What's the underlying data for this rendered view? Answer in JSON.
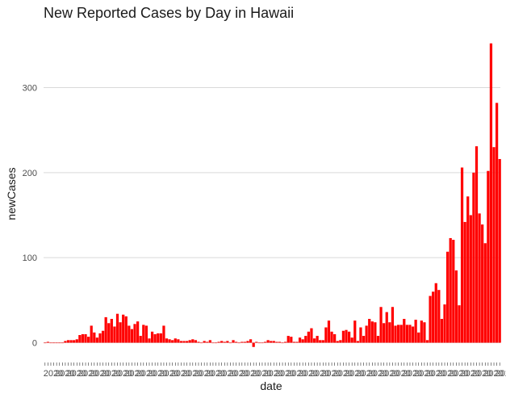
{
  "chart_data": {
    "type": "bar",
    "title": "New Reported Cases by Day in Hawaii",
    "xlabel": "date",
    "ylabel": "newCases",
    "ylim": [
      -10,
      355
    ],
    "yticks": [
      0,
      100,
      200,
      300
    ],
    "grid": "horizontal",
    "legend": "none",
    "bar_color": "#ff0000",
    "x_tick_label_stub": "2020",
    "values": [
      0,
      1,
      0,
      0,
      0,
      0,
      0,
      2,
      3,
      3,
      3,
      4,
      9,
      10,
      10,
      7,
      20,
      12,
      6,
      11,
      14,
      30,
      23,
      28,
      19,
      34,
      24,
      33,
      31,
      20,
      16,
      22,
      25,
      8,
      21,
      20,
      5,
      13,
      10,
      11,
      11,
      20,
      5,
      4,
      3,
      5,
      4,
      2,
      2,
      2,
      3,
      4,
      3,
      1,
      0,
      2,
      1,
      3,
      0,
      0,
      1,
      2,
      1,
      2,
      0,
      3,
      1,
      0,
      1,
      1,
      2,
      4,
      -5,
      1,
      0,
      0,
      1,
      3,
      2,
      2,
      1,
      1,
      0,
      1,
      8,
      7,
      1,
      1,
      6,
      4,
      8,
      13,
      17,
      5,
      8,
      3,
      3,
      18,
      26,
      13,
      10,
      2,
      3,
      14,
      15,
      13,
      6,
      26,
      2,
      18,
      8,
      20,
      28,
      25,
      24,
      8,
      42,
      23,
      36,
      24,
      42,
      20,
      21,
      21,
      28,
      21,
      21,
      19,
      27,
      12,
      26,
      24,
      3,
      55,
      60,
      70,
      62,
      28,
      45,
      107,
      123,
      121,
      85,
      44,
      206,
      142,
      172,
      150,
      200,
      231,
      152,
      139,
      117,
      202,
      352,
      230,
      282,
      216
    ]
  }
}
